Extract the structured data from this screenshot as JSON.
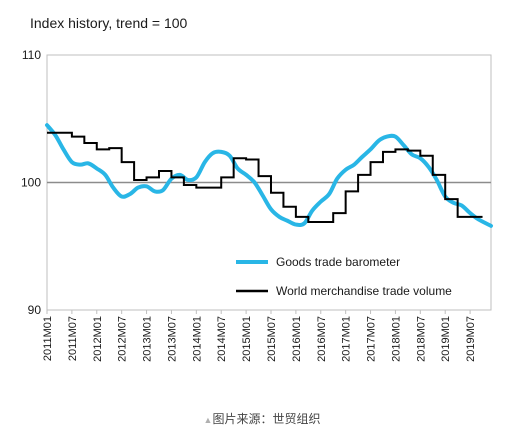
{
  "caption": {
    "lead": "▲",
    "text": "图片来源：世贸组织"
  },
  "chart_data": {
    "type": "line",
    "title": "Index history, trend = 100",
    "xlabel": "",
    "ylabel": "",
    "ylim": [
      90,
      110
    ],
    "yticks": [
      90,
      100,
      110
    ],
    "xlim": [
      2011.0,
      2019.92
    ],
    "baseline": 100,
    "grid": false,
    "legend_position": "lower-center",
    "x_tick_labels": [
      "2011M01",
      "2011M07",
      "2012M01",
      "2012M07",
      "2013M01",
      "2013M07",
      "2014M01",
      "2014M07",
      "2015M01",
      "2015M07",
      "2016M01",
      "2016M07",
      "2017M01",
      "2017M07",
      "2018M01",
      "2018M07",
      "2019M01",
      "2019M07"
    ],
    "x_tick_values": [
      2011.0,
      2011.5,
      2012.0,
      2012.5,
      2013.0,
      2013.5,
      2014.0,
      2014.5,
      2015.0,
      2015.5,
      2016.0,
      2016.5,
      2017.0,
      2017.5,
      2018.0,
      2018.5,
      2019.0,
      2019.5
    ],
    "series": [
      {
        "name": "Goods trade barometer",
        "color": "#29b6e6",
        "style": "smooth",
        "x": [
          2011.0,
          2011.17,
          2011.33,
          2011.5,
          2011.67,
          2011.83,
          2012.0,
          2012.17,
          2012.33,
          2012.5,
          2012.67,
          2012.83,
          2013.0,
          2013.17,
          2013.33,
          2013.5,
          2013.67,
          2013.83,
          2014.0,
          2014.17,
          2014.33,
          2014.5,
          2014.67,
          2014.83,
          2015.0,
          2015.17,
          2015.33,
          2015.5,
          2015.67,
          2015.83,
          2016.0,
          2016.17,
          2016.33,
          2016.5,
          2016.67,
          2016.83,
          2017.0,
          2017.17,
          2017.33,
          2017.5,
          2017.67,
          2017.83,
          2018.0,
          2018.17,
          2018.33,
          2018.5,
          2018.67,
          2018.83,
          2019.0,
          2019.17,
          2019.33,
          2019.5,
          2019.67,
          2019.92
        ],
        "values": [
          104.5,
          103.7,
          102.6,
          101.6,
          101.4,
          101.5,
          101.1,
          100.6,
          99.6,
          98.9,
          99.1,
          99.6,
          99.7,
          99.3,
          99.4,
          100.3,
          100.6,
          100.2,
          100.4,
          101.6,
          102.3,
          102.4,
          102.1,
          101.1,
          100.6,
          100.0,
          99.0,
          97.9,
          97.3,
          97.0,
          96.7,
          96.8,
          97.8,
          98.5,
          99.1,
          100.3,
          101.0,
          101.4,
          102.0,
          102.6,
          103.3,
          103.6,
          103.6,
          102.9,
          102.2,
          101.9,
          101.2,
          100.2,
          98.9,
          98.4,
          98.2,
          97.6,
          97.1,
          96.6
        ]
      },
      {
        "name": "World merchandise trade volume",
        "color": "#000000",
        "style": "step",
        "x": [
          2011.0,
          2011.25,
          2011.5,
          2011.75,
          2012.0,
          2012.25,
          2012.5,
          2012.75,
          2013.0,
          2013.25,
          2013.5,
          2013.75,
          2014.0,
          2014.25,
          2014.5,
          2014.75,
          2015.0,
          2015.25,
          2015.5,
          2015.75,
          2016.0,
          2016.25,
          2016.5,
          2016.75,
          2017.0,
          2017.25,
          2017.5,
          2017.75,
          2018.0,
          2018.25,
          2018.5,
          2018.75,
          2019.0,
          2019.25,
          2019.5
        ],
        "values": [
          103.9,
          103.9,
          103.6,
          103.1,
          102.6,
          102.7,
          101.6,
          100.2,
          100.4,
          100.9,
          100.4,
          99.8,
          99.6,
          99.6,
          100.4,
          101.9,
          101.8,
          100.5,
          99.2,
          98.1,
          97.3,
          96.9,
          96.9,
          97.6,
          99.3,
          100.6,
          101.6,
          102.4,
          102.6,
          102.5,
          102.1,
          100.6,
          98.7,
          97.3,
          97.3
        ],
        "x_end": 2019.75
      }
    ]
  }
}
